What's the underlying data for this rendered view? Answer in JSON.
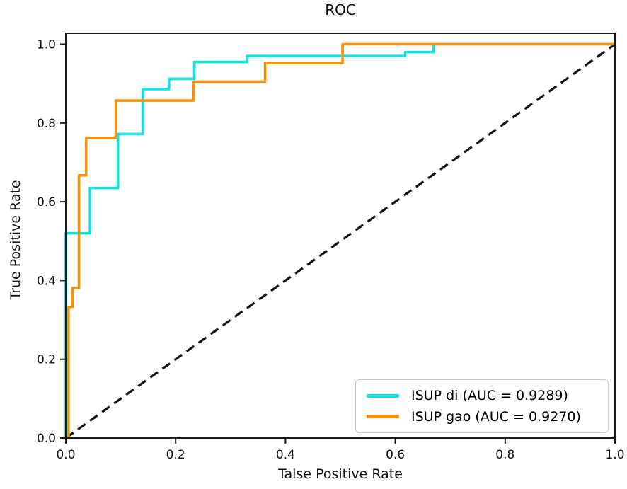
{
  "chart_data": {
    "type": "line",
    "subtype": "roc-step-curves",
    "title": "ROC",
    "xlabel": "Talse Positive Rate",
    "ylabel": "True Positive Rate",
    "xlim": [
      0.0,
      1.0
    ],
    "ylim": [
      0.0,
      1.03
    ],
    "x_tick_labels": [
      "0.0",
      "0.2",
      "0.4",
      "0.6",
      "0.8",
      "1.0"
    ],
    "y_tick_labels": [
      "0.0",
      "0.2",
      "0.4",
      "0.6",
      "0.8",
      "1.0"
    ],
    "x_ticks": [
      0.0,
      0.2,
      0.4,
      0.6,
      0.8,
      1.0
    ],
    "y_ticks": [
      0.0,
      0.2,
      0.4,
      0.6,
      0.8,
      1.0
    ],
    "grid": false,
    "background": "#ffffff",
    "axis_color": "#1a1a1a",
    "legend_position": "lower right",
    "series": [
      {
        "name": "ISUP di",
        "label": "ISUP di (AUC = 0.9289)",
        "auc": "0.9289",
        "color": "#0fe2e2",
        "line_style": "solid",
        "line_width": 3.6,
        "points": [
          [
            0,
            0
          ],
          [
            0,
            0.52
          ],
          [
            0.044,
            0.52
          ],
          [
            0.044,
            0.635
          ],
          [
            0.095,
            0.635
          ],
          [
            0.095,
            0.772
          ],
          [
            0.14,
            0.772
          ],
          [
            0.14,
            0.886
          ],
          [
            0.188,
            0.886
          ],
          [
            0.188,
            0.912
          ],
          [
            0.234,
            0.912
          ],
          [
            0.234,
            0.955
          ],
          [
            0.33,
            0.955
          ],
          [
            0.33,
            0.97
          ],
          [
            0.618,
            0.97
          ],
          [
            0.618,
            0.98
          ],
          [
            0.67,
            0.98
          ],
          [
            0.67,
            1.0
          ],
          [
            1.0,
            1.0
          ]
        ]
      },
      {
        "name": "ISUP gao",
        "label": "ISUP gao (AUC = 0.9270)",
        "auc": "0.9270",
        "color": "#f5920a",
        "line_style": "solid",
        "line_width": 3.6,
        "points": [
          [
            0.005,
            0
          ],
          [
            0.005,
            0.333
          ],
          [
            0.012,
            0.333
          ],
          [
            0.012,
            0.381
          ],
          [
            0.024,
            0.381
          ],
          [
            0.024,
            0.667
          ],
          [
            0.037,
            0.667
          ],
          [
            0.037,
            0.762
          ],
          [
            0.091,
            0.762
          ],
          [
            0.091,
            0.857
          ],
          [
            0.233,
            0.857
          ],
          [
            0.233,
            0.905
          ],
          [
            0.363,
            0.905
          ],
          [
            0.363,
            0.952
          ],
          [
            0.504,
            0.952
          ],
          [
            0.504,
            1.0
          ],
          [
            1.0,
            1.0
          ]
        ]
      }
    ],
    "reference_line": {
      "name": "chance-diagonal",
      "points": [
        [
          0,
          0
        ],
        [
          1,
          1
        ]
      ],
      "color": "#111111",
      "line_style": "dashed",
      "line_width": 3.2,
      "dash_pattern": "13 8"
    }
  }
}
